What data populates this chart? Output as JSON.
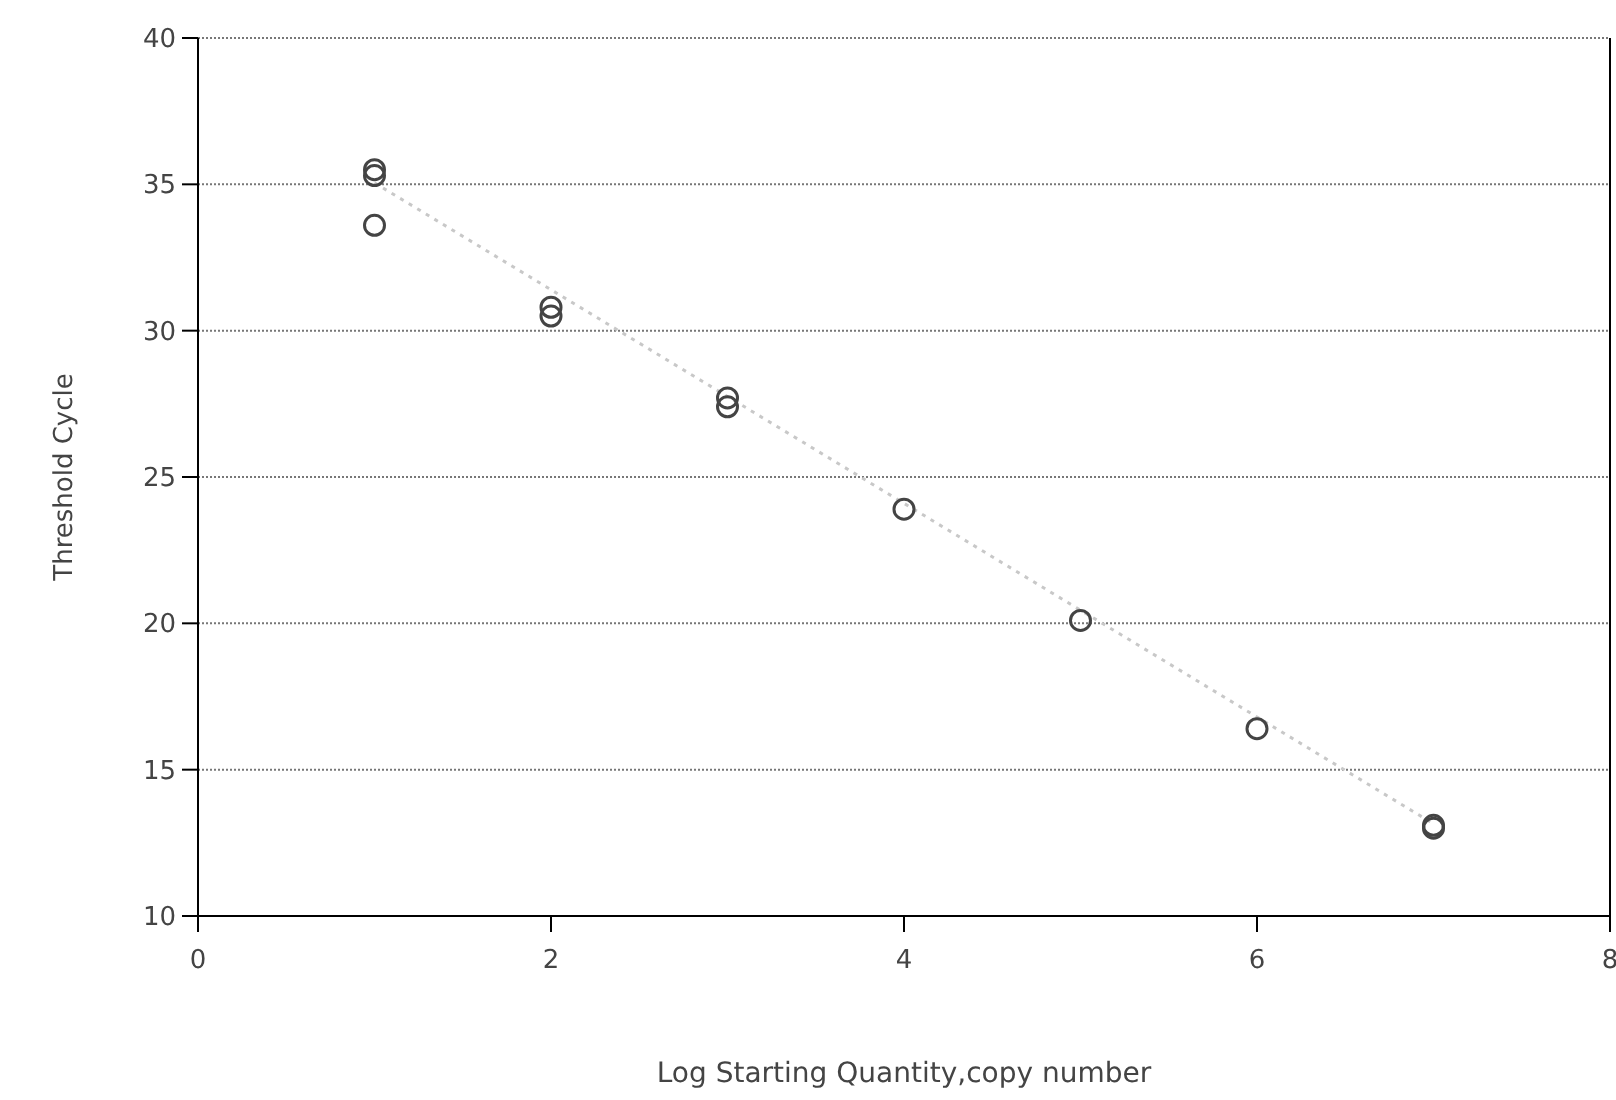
{
  "chart_data": {
    "type": "scatter",
    "xlabel": "Log Starting Quantity,copy number",
    "ylabel": "Threshold Cycle",
    "xlim": [
      0,
      8
    ],
    "xticks": [
      0,
      2,
      4,
      6,
      8
    ],
    "ylim": [
      10,
      40
    ],
    "yticks": [
      10,
      15,
      20,
      25,
      30,
      35,
      40
    ],
    "grid": "y",
    "marker": "circle",
    "series": [
      {
        "color": "#444444",
        "x": [
          1,
          1,
          1,
          2,
          2,
          3,
          3,
          4,
          5,
          6,
          7,
          7
        ],
        "values": [
          35.5,
          35.3,
          33.6,
          30.8,
          30.5,
          27.7,
          27.4,
          23.9,
          20.1,
          16.4,
          13.1,
          13.0
        ]
      },
      {
        "type": "line",
        "color": "#c8c8c8",
        "line_style": "dotted",
        "marker": "none",
        "x": [
          1,
          7
        ],
        "values": [
          35.05,
          13.15
        ]
      }
    ]
  }
}
